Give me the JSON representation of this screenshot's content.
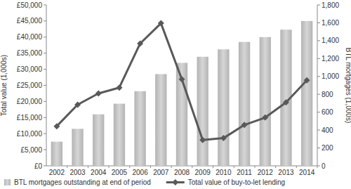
{
  "chart_data": {
    "type": "combo",
    "ylabel": "Total value (1,000s)",
    "y2label": "BTL mortgages (1,000s)",
    "categories": [
      "2002",
      "2003",
      "2004",
      "2005",
      "2006",
      "2007",
      "2008",
      "2009",
      "2010",
      "2011",
      "2012",
      "2013",
      "2014"
    ],
    "series": [
      {
        "name": "BTL mortgages outstanding at end of period",
        "type": "bar",
        "axis": "y2",
        "color": "#b3b3b3",
        "values": [
          270,
          414,
          576,
          695,
          835,
          1026,
          1152,
          1220,
          1303,
          1386,
          1440,
          1523,
          1620
        ]
      },
      {
        "name": "Total value of buy-to-let lending",
        "type": "line",
        "color": "#595959",
        "marker": "diamond",
        "line_style": "solid",
        "values": [
          12300,
          19000,
          22500,
          24300,
          38000,
          44300,
          26900,
          8000,
          8600,
          12700,
          15000,
          19700,
          26600
        ]
      }
    ],
    "ylim": [
      0,
      50000
    ],
    "yticks": [
      {
        "value": 0,
        "label": "£0"
      },
      {
        "value": 5000,
        "label": "£5,000"
      },
      {
        "value": 10000,
        "label": "£10,000"
      },
      {
        "value": 15000,
        "label": "£15,000"
      },
      {
        "value": 20000,
        "label": "£20,000"
      },
      {
        "value": 25000,
        "label": "£25,000"
      },
      {
        "value": 30000,
        "label": "£30,000"
      },
      {
        "value": 35000,
        "label": "£35,000"
      },
      {
        "value": 40000,
        "label": "£40,000"
      },
      {
        "value": 45000,
        "label": "£45,000"
      },
      {
        "value": 50000,
        "label": "£50,000"
      }
    ],
    "y2lim": [
      0,
      1800
    ],
    "y2ticks": [
      0,
      200,
      400,
      600,
      800,
      {
        "value": 1000,
        "label": "1,000"
      },
      {
        "value": 1200,
        "label": "1,200"
      },
      {
        "value": 1400,
        "label": "1,400"
      },
      {
        "value": 1600,
        "label": "1,600"
      },
      {
        "value": 1800,
        "label": "1,800"
      }
    ],
    "grid": false,
    "legend": "bottom"
  }
}
